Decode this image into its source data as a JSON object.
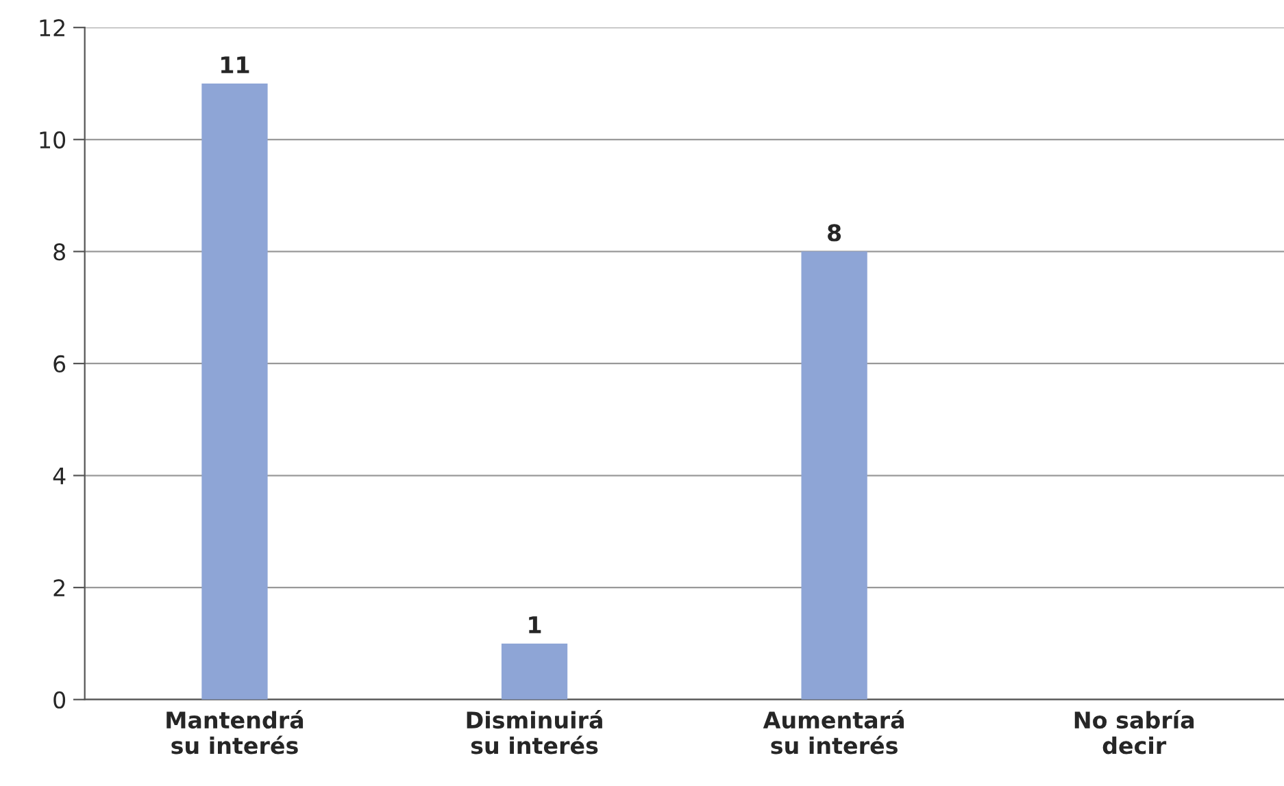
{
  "chart_data": {
    "type": "bar",
    "categories": [
      "Mantendrá\nsu interés",
      "Disminuirá\nsu interés",
      "Aumentará\nsu interés",
      "No sabría\ndecir"
    ],
    "values": [
      11,
      1,
      8,
      null
    ],
    "value_labels": [
      "11",
      "1",
      "8",
      null
    ],
    "color": "#8ea5d6",
    "ylim": [
      0,
      12
    ],
    "yticks": [
      0,
      2,
      4,
      6,
      8,
      10,
      12
    ],
    "grid": "y"
  }
}
